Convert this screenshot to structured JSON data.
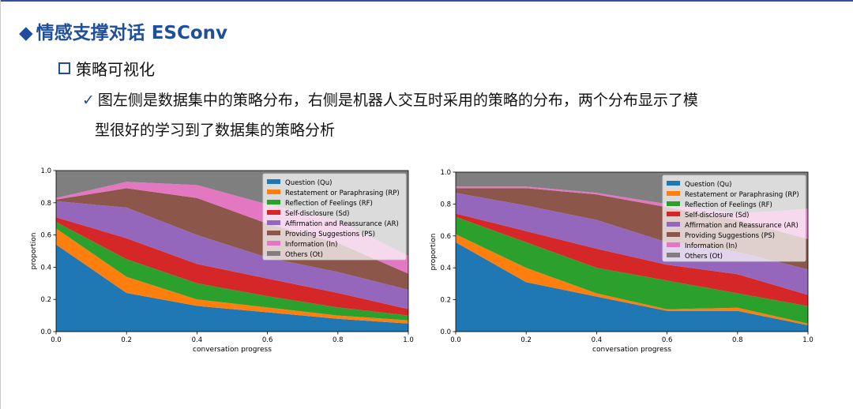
{
  "slide": {
    "title_marker": "◆",
    "title": "情感支撑对话 ESConv",
    "subtitle": "策略可视化",
    "check_mark": "✓",
    "paragraph_line1": "图左侧是数据集中的策略分布，右侧是机器人交互时采用的策略的分布，两个分布显示了模",
    "paragraph_line2": "型很好的学习到了数据集的策略分析"
  },
  "chart_data": [
    {
      "type": "area",
      "stacked": true,
      "xlabel": "conversation progress",
      "ylabel": "proportion",
      "xlim": [
        0,
        1
      ],
      "ylim": [
        0,
        1
      ],
      "x_ticks": [
        "0.0",
        "0.2",
        "0.4",
        "0.6",
        "0.8",
        "1.0"
      ],
      "y_ticks": [
        "0.0",
        "0.2",
        "0.4",
        "0.6",
        "0.8",
        "1.0"
      ],
      "legend_position": "top-right",
      "x": [
        0,
        0.2,
        0.4,
        0.6,
        0.8,
        1.0
      ],
      "series": [
        {
          "name": "Question (Qu)",
          "color": "#1f77b4",
          "values": [
            0.54,
            0.24,
            0.16,
            0.12,
            0.08,
            0.05
          ]
        },
        {
          "name": "Restatement or Paraphrasing (RP)",
          "color": "#ff7f0e",
          "values": [
            0.1,
            0.1,
            0.04,
            0.03,
            0.02,
            0.02
          ]
        },
        {
          "name": "Reflection of Feelings (RF)",
          "color": "#2ca02c",
          "values": [
            0.04,
            0.11,
            0.1,
            0.07,
            0.05,
            0.03
          ]
        },
        {
          "name": "Self-disclosure (Sd)",
          "color": "#d62728",
          "values": [
            0.03,
            0.13,
            0.12,
            0.11,
            0.09,
            0.04
          ]
        },
        {
          "name": "Affirmation and Reassurance (AR)",
          "color": "#9467bd",
          "values": [
            0.1,
            0.19,
            0.18,
            0.13,
            0.13,
            0.12
          ]
        },
        {
          "name": "Providing Suggestions (PS)",
          "color": "#8c564b",
          "values": [
            0.01,
            0.12,
            0.23,
            0.21,
            0.18,
            0.1
          ]
        },
        {
          "name": "Information (In)",
          "color": "#e377c2",
          "values": [
            0.01,
            0.04,
            0.08,
            0.12,
            0.14,
            0.11
          ]
        },
        {
          "name": "Others (Ot)",
          "color": "#7f7f7f",
          "values": [
            0.17,
            0.07,
            0.09,
            0.21,
            0.31,
            0.53
          ]
        }
      ]
    },
    {
      "type": "area",
      "stacked": true,
      "xlabel": "conversation progress",
      "ylabel": "proportion",
      "xlim": [
        0,
        1
      ],
      "ylim": [
        0,
        1
      ],
      "x_ticks": [
        "0.0",
        "0.2",
        "0.4",
        "0.6",
        "0.8",
        "1.0"
      ],
      "y_ticks": [
        "0.0",
        "0.2",
        "0.4",
        "0.6",
        "0.8",
        "1.0"
      ],
      "legend_position": "top-right",
      "x": [
        0,
        0.2,
        0.4,
        0.6,
        0.8,
        1.0
      ],
      "series": [
        {
          "name": "Question (Qu)",
          "color": "#1f77b4",
          "values": [
            0.56,
            0.31,
            0.22,
            0.13,
            0.13,
            0.04
          ]
        },
        {
          "name": "Restatement or Paraphrasing (RP)",
          "color": "#ff7f0e",
          "values": [
            0.05,
            0.09,
            0.02,
            0.01,
            0.02,
            0.01
          ]
        },
        {
          "name": "Reflection of Feelings (RF)",
          "color": "#2ca02c",
          "values": [
            0.11,
            0.16,
            0.16,
            0.18,
            0.09,
            0.11
          ]
        },
        {
          "name": "Self-disclosure (Sd)",
          "color": "#d62728",
          "values": [
            0.02,
            0.07,
            0.12,
            0.1,
            0.12,
            0.07
          ]
        },
        {
          "name": "Affirmation and Reassurance (AR)",
          "color": "#9467bd",
          "values": [
            0.13,
            0.16,
            0.18,
            0.14,
            0.14,
            0.16
          ]
        },
        {
          "name": "Providing Suggestions (PS)",
          "color": "#8c564b",
          "values": [
            0.03,
            0.11,
            0.16,
            0.22,
            0.2,
            0.19
          ]
        },
        {
          "name": "Information (In)",
          "color": "#e377c2",
          "values": [
            0.01,
            0.01,
            0.01,
            0.02,
            0.04,
            0.19
          ]
        },
        {
          "name": "Others (Ot)",
          "color": "#7f7f7f",
          "values": [
            0.09,
            0.09,
            0.13,
            0.2,
            0.26,
            0.23
          ]
        }
      ]
    }
  ]
}
